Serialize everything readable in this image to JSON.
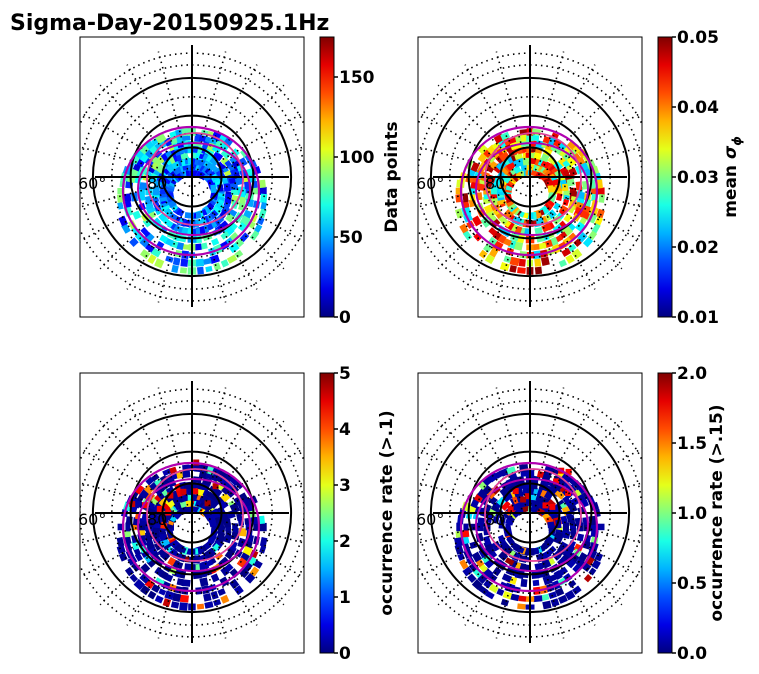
{
  "title": "Sigma-Day-20150925.1Hz",
  "chart_data": [
    {
      "type": "heatmap",
      "panel": "top-left",
      "projection": "polar (magnetic latitude / MLT)",
      "lat_ring_labels": [
        "60",
        "80"
      ],
      "colorbar": {
        "label": "Data points",
        "min": 0,
        "max": 175,
        "ticks": [
          0,
          50,
          100,
          150
        ],
        "tick_labels": [
          "0",
          "50",
          "100",
          "150"
        ],
        "colormap": "jet"
      },
      "colatitude_rings": [
        0.25,
        0.52,
        0.84
      ],
      "overlay_oval": true,
      "pattern_seed": 11
    },
    {
      "type": "heatmap",
      "panel": "top-right",
      "projection": "polar (magnetic latitude / MLT)",
      "lat_ring_labels": [
        "60",
        "80"
      ],
      "colorbar": {
        "label_prefix": "mean ",
        "label_symbol": "σ",
        "label_subscript": "ϕ",
        "min": 0.01,
        "max": 0.05,
        "ticks": [
          0.01,
          0.02,
          0.03,
          0.04,
          0.05
        ],
        "tick_labels": [
          "0.01",
          "0.02",
          "0.03",
          "0.04",
          "0.05"
        ],
        "colormap": "jet"
      },
      "colatitude_rings": [
        0.25,
        0.52,
        0.84
      ],
      "overlay_oval": true,
      "pattern_seed": 23
    },
    {
      "type": "heatmap",
      "panel": "bottom-left",
      "projection": "polar (magnetic latitude / MLT)",
      "lat_ring_labels": [
        "60",
        "80"
      ],
      "colorbar": {
        "label": "occurrence rate (>.1)",
        "min": 0,
        "max": 5,
        "ticks": [
          0,
          1,
          2,
          3,
          4,
          5
        ],
        "tick_labels": [
          "0",
          "1",
          "2",
          "3",
          "4",
          "5"
        ],
        "colormap": "jet"
      },
      "colatitude_rings": [
        0.25,
        0.52,
        0.84
      ],
      "overlay_oval": true,
      "pattern_seed": 37
    },
    {
      "type": "heatmap",
      "panel": "bottom-right",
      "projection": "polar (magnetic latitude / MLT)",
      "lat_ring_labels": [
        "60",
        "80"
      ],
      "colorbar": {
        "label": "occurrence rate (>.15)",
        "min": 0,
        "max": 2,
        "ticks": [
          0,
          0.5,
          1,
          1.5,
          2
        ],
        "tick_labels": [
          "0.0",
          "0.5",
          "1.0",
          "1.5",
          "2.0"
        ],
        "colormap": "jet"
      },
      "colatitude_rings": [
        0.25,
        0.52,
        0.84
      ],
      "overlay_oval": true,
      "pattern_seed": 53
    }
  ],
  "colors": {
    "axes": "#000000",
    "oval": "#b000b0",
    "pink_oval": "#e0409a"
  }
}
